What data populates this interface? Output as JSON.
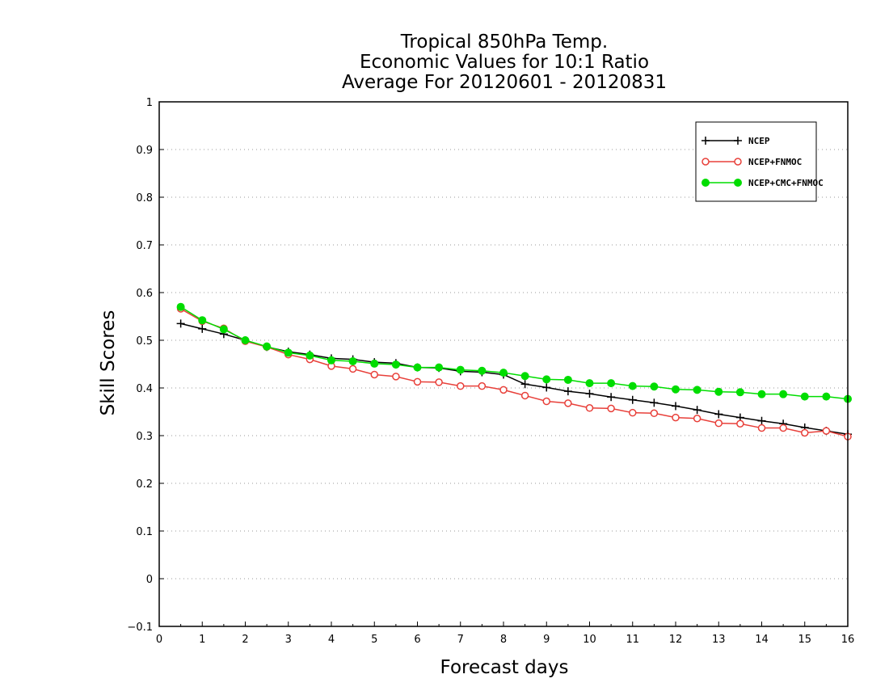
{
  "chart_data": {
    "type": "line",
    "title": [
      "Tropical 850hPa Temp.",
      "Economic Values for 10:1 Ratio",
      "Average For 20120601 - 20120831"
    ],
    "xlabel": "Forecast days",
    "ylabel": "Skill Scores",
    "xlim": [
      0,
      16
    ],
    "ylim": [
      -0.1,
      1
    ],
    "xticks": [
      "0",
      "1",
      "2",
      "3",
      "4",
      "5",
      "6",
      "7",
      "8",
      "9",
      "10",
      "11",
      "12",
      "13",
      "14",
      "15",
      "16"
    ],
    "yticks": [
      "−0.1",
      "0",
      "0.1",
      "0.2",
      "0.3",
      "0.4",
      "0.5",
      "0.6",
      "0.7",
      "0.8",
      "0.9",
      "1"
    ],
    "grid": true,
    "legend_position": "top-right",
    "x": [
      0.5,
      1,
      1.5,
      2,
      2.5,
      3,
      3.5,
      4,
      4.5,
      5,
      5.5,
      6,
      6.5,
      7,
      7.5,
      8,
      8.5,
      9,
      9.5,
      10,
      10.5,
      11,
      11.5,
      12,
      12.5,
      13,
      13.5,
      14,
      14.5,
      15,
      15.5,
      16
    ],
    "series": [
      {
        "name": "NCEP",
        "color": "#000000",
        "marker": "plus",
        "values": [
          0.535,
          0.524,
          0.513,
          0.5,
          0.486,
          0.476,
          0.47,
          0.462,
          0.46,
          0.454,
          0.452,
          0.443,
          0.442,
          0.435,
          0.433,
          0.428,
          0.408,
          0.401,
          0.393,
          0.388,
          0.381,
          0.375,
          0.369,
          0.362,
          0.354,
          0.345,
          0.338,
          0.331,
          0.325,
          0.317,
          0.31,
          0.303
        ]
      },
      {
        "name": "NCEP+FNMOC",
        "color": "#e8403a",
        "marker": "open-circle",
        "values": [
          0.566,
          0.54,
          0.525,
          0.498,
          0.486,
          0.47,
          0.46,
          0.446,
          0.44,
          0.428,
          0.424,
          0.413,
          0.412,
          0.404,
          0.404,
          0.396,
          0.384,
          0.372,
          0.368,
          0.358,
          0.357,
          0.348,
          0.347,
          0.338,
          0.336,
          0.326,
          0.325,
          0.316,
          0.316,
          0.306,
          0.31,
          0.298
        ]
      },
      {
        "name": "NCEP+CMC+FNMOC",
        "color": "#00dd00",
        "marker": "filled-circle",
        "values": [
          0.57,
          0.542,
          0.523,
          0.5,
          0.487,
          0.474,
          0.468,
          0.458,
          0.456,
          0.451,
          0.449,
          0.443,
          0.443,
          0.438,
          0.436,
          0.432,
          0.425,
          0.418,
          0.417,
          0.41,
          0.41,
          0.404,
          0.403,
          0.397,
          0.396,
          0.392,
          0.391,
          0.387,
          0.387,
          0.382,
          0.382,
          0.377
        ]
      }
    ]
  }
}
